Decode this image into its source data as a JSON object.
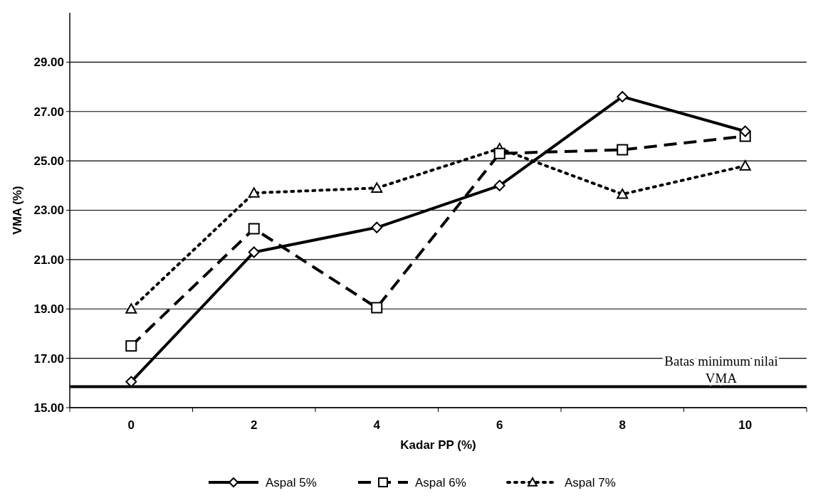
{
  "chart_data": {
    "type": "line",
    "xlabel": "Kadar PP (%)",
    "ylabel": "VMA (%)",
    "categories": [
      "0",
      "2",
      "4",
      "6",
      "8",
      "10"
    ],
    "series": [
      {
        "name": "Aspal 5%",
        "color": "#000000",
        "marker": "diamond",
        "line_style": "solid",
        "values": [
          16.05,
          21.3,
          22.3,
          24.0,
          27.6,
          26.2
        ]
      },
      {
        "name": "Aspal 6%",
        "color": "#000000",
        "marker": "square",
        "line_style": "dashed",
        "values": [
          17.5,
          22.25,
          19.05,
          25.3,
          25.45,
          26.0
        ]
      },
      {
        "name": "Aspal 7%",
        "color": "#000000",
        "marker": "triangle",
        "line_style": "dotted",
        "values": [
          19.0,
          23.7,
          23.9,
          25.5,
          23.65,
          24.8
        ]
      }
    ],
    "ylim": [
      15,
      31
    ],
    "yticks": [
      {
        "value": 15,
        "label": "15.00"
      },
      {
        "value": 17,
        "label": "17.00"
      },
      {
        "value": 19,
        "label": "19.00"
      },
      {
        "value": 21,
        "label": "21.00"
      },
      {
        "value": 23,
        "label": "23.00"
      },
      {
        "value": 25,
        "label": "25.00"
      },
      {
        "value": 27,
        "label": "27.00"
      },
      {
        "value": 29,
        "label": "29.00"
      }
    ],
    "grid": "y",
    "legend": "bottom",
    "ref_lines": [
      {
        "axis": "y",
        "value": 15.85,
        "label": "Batas minimum nilai VMA",
        "color": "#000000"
      }
    ]
  }
}
